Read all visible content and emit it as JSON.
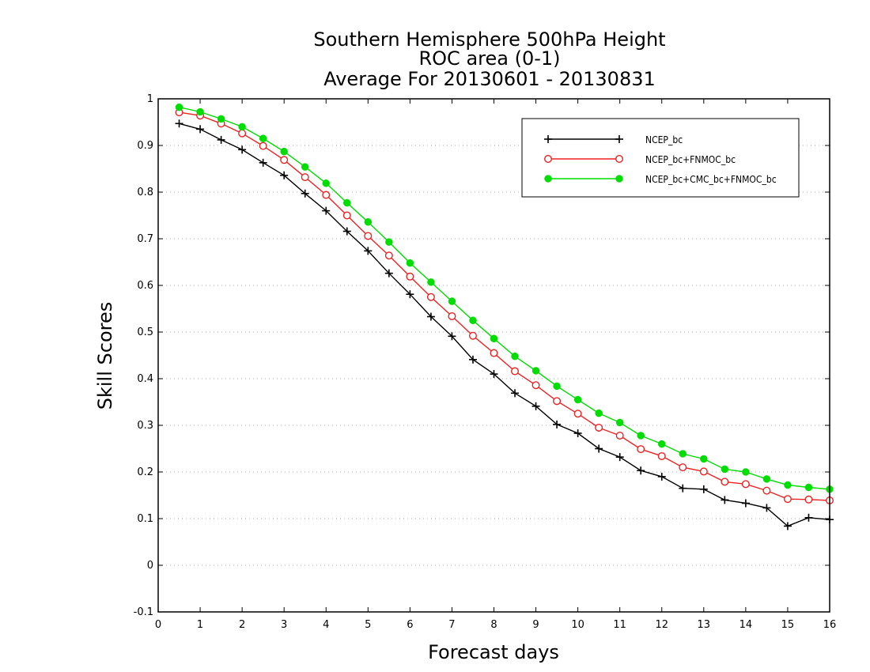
{
  "chart_data": {
    "type": "line",
    "title_lines": [
      "Southern Hemisphere 500hPa Height",
      "ROC area (0-1)",
      "Average For 20130601 - 20130831"
    ],
    "xlabel": "Forecast days",
    "ylabel": "Skill Scores",
    "xlim": [
      0,
      16
    ],
    "ylim": [
      -0.1,
      1
    ],
    "xticks": [
      "0",
      "1",
      "2",
      "3",
      "4",
      "5",
      "6",
      "7",
      "8",
      "9",
      "10",
      "11",
      "12",
      "13",
      "14",
      "15",
      "16"
    ],
    "yticks": [
      "-0.1",
      "0",
      "0.1",
      "0.2",
      "0.3",
      "0.4",
      "0.5",
      "0.6",
      "0.7",
      "0.8",
      "0.9",
      "1"
    ],
    "grid": "horizontal dotted",
    "legend_position": "top-right",
    "x": [
      0.5,
      1,
      1.5,
      2,
      2.5,
      3,
      3.5,
      4,
      4.5,
      5,
      5.5,
      6,
      6.5,
      7,
      7.5,
      8,
      8.5,
      9,
      9.5,
      10,
      10.5,
      11,
      11.5,
      12,
      12.5,
      13,
      13.5,
      14,
      14.5,
      15,
      15.5,
      16
    ],
    "series": [
      {
        "name": "NCEP_bc",
        "color": "#000000",
        "marker": "plus",
        "values": [
          0.947,
          0.935,
          0.912,
          0.891,
          0.863,
          0.836,
          0.797,
          0.76,
          0.716,
          0.674,
          0.626,
          0.581,
          0.533,
          0.491,
          0.441,
          0.41,
          0.369,
          0.341,
          0.302,
          0.283,
          0.25,
          0.232,
          0.203,
          0.19,
          0.165,
          0.163,
          0.14,
          0.133,
          0.123,
          0.084,
          0.102,
          0.098
        ]
      },
      {
        "name": "NCEP_bc+FNMOC_bc",
        "color": "#ee2222",
        "marker": "open-circle",
        "values": [
          0.971,
          0.964,
          0.947,
          0.926,
          0.899,
          0.869,
          0.832,
          0.794,
          0.75,
          0.706,
          0.664,
          0.619,
          0.575,
          0.534,
          0.492,
          0.455,
          0.416,
          0.386,
          0.352,
          0.325,
          0.295,
          0.278,
          0.249,
          0.234,
          0.21,
          0.201,
          0.179,
          0.174,
          0.16,
          0.142,
          0.141,
          0.139
        ]
      },
      {
        "name": "NCEP_bc+CMC_bc+FNMOC_bc",
        "color": "#00dd00",
        "marker": "filled-circle",
        "values": [
          0.982,
          0.972,
          0.957,
          0.94,
          0.915,
          0.887,
          0.854,
          0.819,
          0.777,
          0.736,
          0.693,
          0.648,
          0.607,
          0.566,
          0.525,
          0.486,
          0.448,
          0.417,
          0.384,
          0.355,
          0.326,
          0.306,
          0.278,
          0.26,
          0.239,
          0.228,
          0.206,
          0.2,
          0.185,
          0.172,
          0.167,
          0.163
        ]
      }
    ]
  }
}
